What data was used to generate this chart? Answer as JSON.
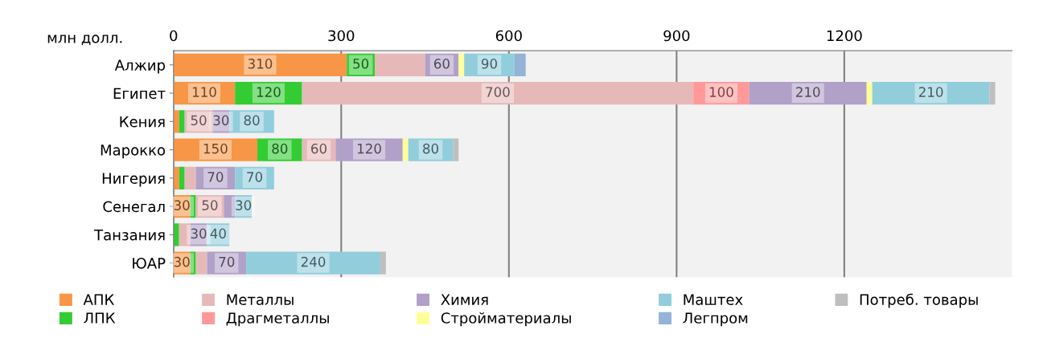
{
  "chart_data": {
    "type": "bar",
    "orientation": "horizontal",
    "stacked": true,
    "xlabel": "млн долл.",
    "categories": [
      "Алжир",
      "Египет",
      "Кения",
      "Марокко",
      "Нигерия",
      "Сенегал",
      "Танзания",
      "ЮАР"
    ],
    "xlim": [
      0,
      1500
    ],
    "xticks": [
      0,
      300,
      600,
      900,
      1200
    ],
    "grid": "x",
    "legend": "bottom",
    "series": [
      {
        "name": "АПК",
        "color": "#f79646",
        "values": [
          310,
          110,
          10,
          150,
          10,
          30,
          null,
          30
        ],
        "value_labels": [
          "310",
          "110",
          null,
          "150",
          null,
          "30",
          null,
          "30"
        ]
      },
      {
        "name": "ЛПК",
        "color": "#33cc33",
        "values": [
          50,
          120,
          10,
          80,
          10,
          10,
          10,
          10
        ],
        "value_labels": [
          "50",
          "120",
          null,
          "80",
          null,
          null,
          null,
          null
        ]
      },
      {
        "name": "Металлы",
        "color": "#e6b9b8",
        "values": [
          90,
          700,
          50,
          60,
          20,
          50,
          20,
          20
        ],
        "value_labels": [
          null,
          "700",
          "50",
          "60",
          null,
          "50",
          null,
          null
        ]
      },
      {
        "name": "Драгметаллы",
        "color": "#ff9999",
        "values": [
          null,
          100,
          null,
          null,
          null,
          null,
          null,
          null
        ],
        "value_labels": [
          null,
          "100",
          null,
          null,
          null,
          null,
          null,
          null
        ]
      },
      {
        "name": "Химия",
        "color": "#b1a0c7",
        "values": [
          60,
          210,
          30,
          120,
          70,
          20,
          30,
          70
        ],
        "value_labels": [
          "60",
          "210",
          "30",
          "120",
          "70",
          null,
          "30",
          "70"
        ]
      },
      {
        "name": "Стройматериалы",
        "color": "#ffff99",
        "values": [
          10,
          10,
          null,
          10,
          null,
          null,
          null,
          null
        ],
        "value_labels": [
          null,
          null,
          null,
          null,
          null,
          null,
          null,
          null
        ]
      },
      {
        "name": "Маштех",
        "color": "#92cddc",
        "values": [
          90,
          210,
          80,
          80,
          70,
          30,
          40,
          240
        ],
        "value_labels": [
          "90",
          "210",
          "80",
          "80",
          "70",
          "30",
          "40",
          "240"
        ]
      },
      {
        "name": "Легпром",
        "color": "#95b3d7",
        "values": [
          20,
          null,
          null,
          null,
          null,
          null,
          null,
          null
        ],
        "value_labels": [
          null,
          null,
          null,
          null,
          null,
          null,
          null,
          null
        ]
      },
      {
        "name": "Потреб. товары",
        "color": "#bfbfbf",
        "values": [
          null,
          10,
          null,
          10,
          null,
          null,
          null,
          10
        ],
        "value_labels": [
          null,
          null,
          null,
          null,
          null,
          null,
          null,
          null
        ]
      }
    ]
  }
}
